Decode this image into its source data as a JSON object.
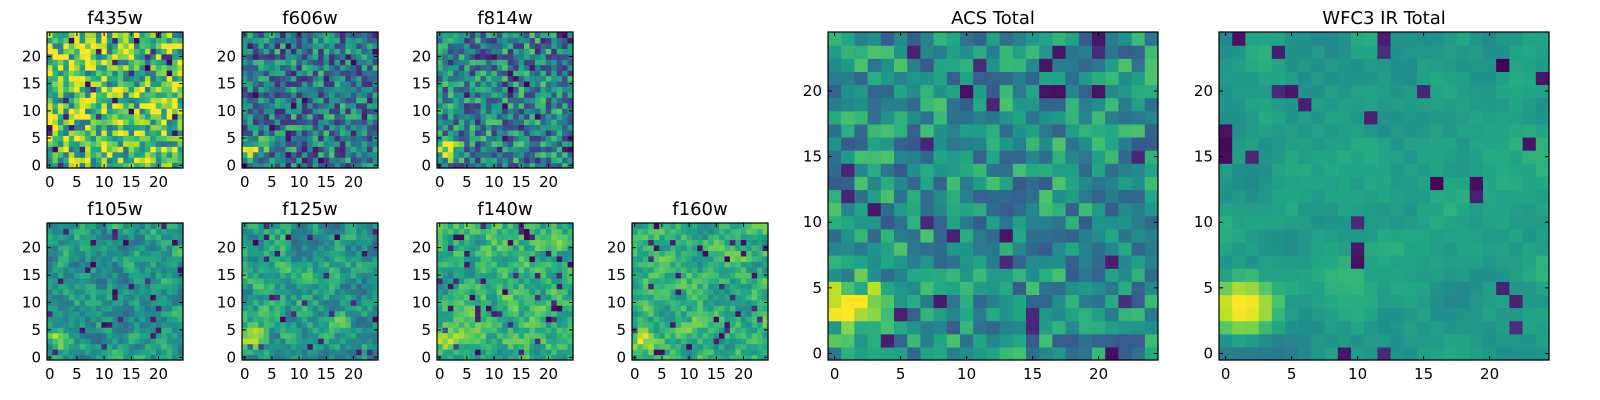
{
  "chart_data": [
    {
      "type": "heatmap",
      "title": "f435w",
      "x_ticks": [
        0,
        5,
        10,
        15,
        20
      ],
      "y_ticks": [
        0,
        5,
        10,
        15,
        20
      ],
      "xlim": [
        0,
        24
      ],
      "ylim": [
        0,
        24
      ],
      "grid_size": 25,
      "colormap": "viridis",
      "seed": 11,
      "bias": 0.72,
      "noise": 0.35,
      "smooth": 0,
      "bright_spot": 0
    },
    {
      "type": "heatmap",
      "title": "f606w",
      "x_ticks": [
        0,
        5,
        10,
        15,
        20
      ],
      "y_ticks": [
        0,
        5,
        10,
        15,
        20
      ],
      "xlim": [
        0,
        24
      ],
      "ylim": [
        0,
        24
      ],
      "grid_size": 25,
      "colormap": "viridis",
      "seed": 23,
      "bias": 0.42,
      "noise": 0.3,
      "smooth": 0,
      "bright_spot": 0.55
    },
    {
      "type": "heatmap",
      "title": "f814w",
      "x_ticks": [
        0,
        5,
        10,
        15,
        20
      ],
      "y_ticks": [
        0,
        5,
        10,
        15,
        20
      ],
      "xlim": [
        0,
        24
      ],
      "ylim": [
        0,
        24
      ],
      "grid_size": 25,
      "colormap": "viridis",
      "seed": 37,
      "bias": 0.45,
      "noise": 0.3,
      "smooth": 0,
      "bright_spot": 0.55
    },
    {
      "type": "heatmap",
      "title": "f105w",
      "x_ticks": [
        0,
        5,
        10,
        15,
        20
      ],
      "y_ticks": [
        0,
        5,
        10,
        15,
        20
      ],
      "xlim": [
        0,
        24
      ],
      "ylim": [
        0,
        24
      ],
      "grid_size": 25,
      "colormap": "viridis",
      "seed": 41,
      "bias": 0.52,
      "noise": 0.32,
      "smooth": 1,
      "bright_spot": 0.4
    },
    {
      "type": "heatmap",
      "title": "f125w",
      "x_ticks": [
        0,
        5,
        10,
        15,
        20
      ],
      "y_ticks": [
        0,
        5,
        10,
        15,
        20
      ],
      "xlim": [
        0,
        24
      ],
      "ylim": [
        0,
        24
      ],
      "grid_size": 25,
      "colormap": "viridis",
      "seed": 53,
      "bias": 0.55,
      "noise": 0.34,
      "smooth": 1,
      "bright_spot": 0.4
    },
    {
      "type": "heatmap",
      "title": "f140w",
      "x_ticks": [
        0,
        5,
        10,
        15,
        20
      ],
      "y_ticks": [
        0,
        5,
        10,
        15,
        20
      ],
      "xlim": [
        0,
        24
      ],
      "ylim": [
        0,
        24
      ],
      "grid_size": 25,
      "colormap": "viridis",
      "seed": 67,
      "bias": 0.65,
      "noise": 0.3,
      "smooth": 1,
      "bright_spot": 0.35
    },
    {
      "type": "heatmap",
      "title": "f160w",
      "x_ticks": [
        0,
        5,
        10,
        15,
        20
      ],
      "y_ticks": [
        0,
        5,
        10,
        15,
        20
      ],
      "xlim": [
        0,
        24
      ],
      "ylim": [
        0,
        24
      ],
      "grid_size": 25,
      "colormap": "viridis",
      "seed": 71,
      "bias": 0.63,
      "noise": 0.3,
      "smooth": 1,
      "bright_spot": 0.35
    },
    {
      "type": "heatmap",
      "title": "ACS Total",
      "x_ticks": [
        0,
        5,
        10,
        15,
        20
      ],
      "y_ticks": [
        0,
        5,
        10,
        15,
        20
      ],
      "xlim": [
        0,
        24
      ],
      "ylim": [
        0,
        24
      ],
      "grid_size": 25,
      "colormap": "viridis",
      "seed": 83,
      "bias": 0.5,
      "noise": 0.22,
      "smooth": 0,
      "bright_spot": 0.6
    },
    {
      "type": "heatmap",
      "title": "WFC3 IR Total",
      "x_ticks": [
        0,
        5,
        10,
        15,
        20
      ],
      "y_ticks": [
        0,
        5,
        10,
        15,
        20
      ],
      "xlim": [
        0,
        24
      ],
      "ylim": [
        0,
        24
      ],
      "grid_size": 25,
      "colormap": "viridis",
      "seed": 97,
      "bias": 0.55,
      "noise": 0.2,
      "smooth": 2,
      "bright_spot": 0.55
    }
  ]
}
